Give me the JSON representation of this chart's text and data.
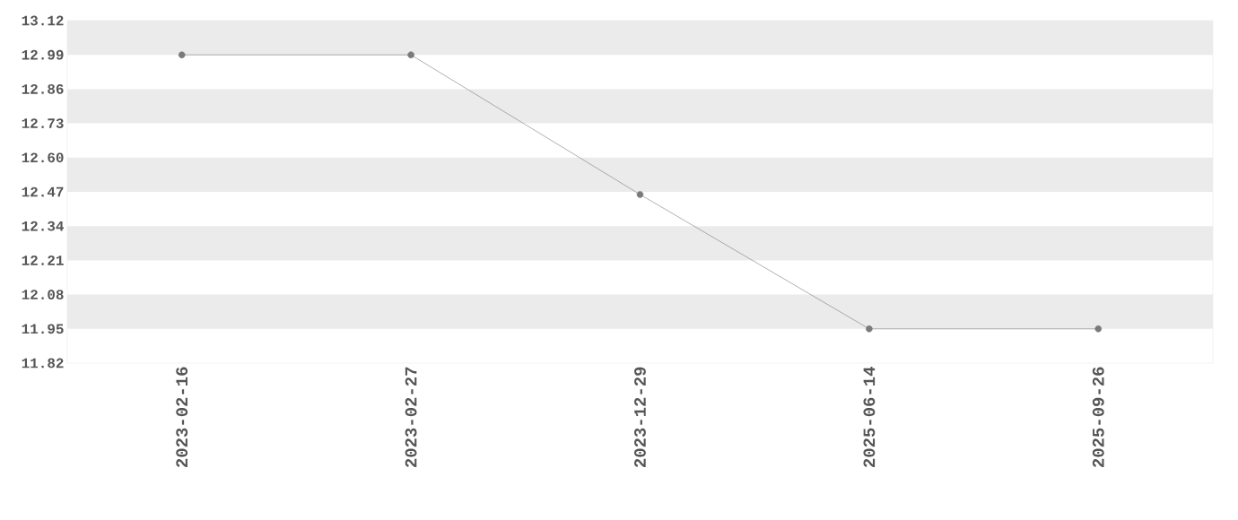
{
  "chart_data": {
    "type": "line",
    "categories": [
      "2023-02-16",
      "2023-02-27",
      "2023-12-29",
      "2025-06-14",
      "2025-09-26"
    ],
    "values": [
      12.99,
      12.99,
      12.46,
      11.95,
      11.95
    ],
    "color": "#7a7a7a",
    "ylim": [
      11.82,
      13.12
    ],
    "yticks": [
      11.82,
      11.95,
      12.08,
      12.21,
      12.34,
      12.47,
      {
        "value": 12.6,
        "label": "12.60"
      },
      12.73,
      12.86,
      12.99,
      13.12
    ],
    "bands": [
      {
        "axis": "y",
        "from": 11.95,
        "to": 12.08,
        "color": "#ebebeb"
      },
      {
        "axis": "y",
        "from": 12.21,
        "to": 12.34,
        "color": "#ebebeb"
      },
      {
        "axis": "y",
        "from": 12.47,
        "to": 12.6,
        "color": "#ebebeb"
      },
      {
        "axis": "y",
        "from": 12.73,
        "to": 12.86,
        "color": "#ebebeb"
      },
      {
        "axis": "y",
        "from": 12.99,
        "to": 13.12,
        "color": "#ebebeb"
      }
    ],
    "marker": "circle"
  }
}
